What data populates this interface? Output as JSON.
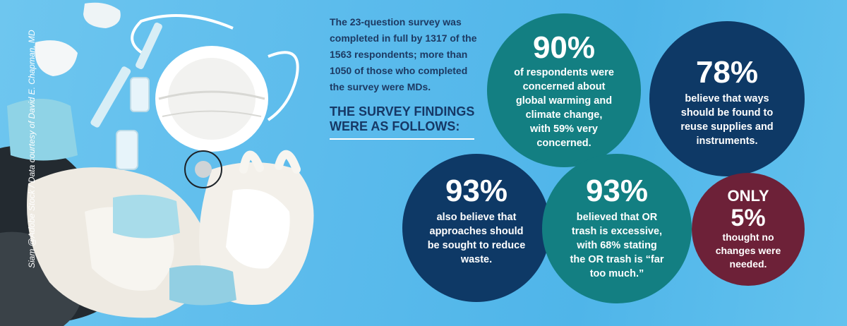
{
  "photo": {
    "credit": "Siam @Adobe Stock / Data courtesy of David E. Chapman, MD"
  },
  "intro": {
    "lines": [
      "The 23-question survey was",
      "completed in full by 1317 of the",
      "1563 respondents; more than",
      "1050 of those who completed",
      "the survey were MDs."
    ]
  },
  "findings_heading": {
    "line1": "THE SURVEY FINDINGS",
    "line2": "WERE AS FOLLOWS:"
  },
  "circles": [
    {
      "stat": "90%",
      "color": "#137f82",
      "lines": [
        "of respondents were",
        "concerned about",
        "global warming and",
        "climate change,",
        "with 59% very",
        "concerned."
      ]
    },
    {
      "stat": "78%",
      "color": "#0e3966",
      "lines": [
        "believe that ways",
        "should be found to",
        "reuse supplies and",
        "instruments."
      ]
    },
    {
      "stat": "93%",
      "color": "#0e3966",
      "lines": [
        "also believe that",
        "approaches should",
        "be sought to reduce",
        "waste."
      ]
    },
    {
      "stat": "93%",
      "color": "#137f82",
      "lines": [
        "believed that OR",
        "trash is excessive,",
        "with 68% stating",
        "the OR trash is “far",
        "too much.”"
      ]
    },
    {
      "prefix": "ONLY",
      "stat": "5%",
      "color": "#6d2138",
      "lines": [
        "thought no",
        "changes were",
        "needed."
      ]
    }
  ]
}
